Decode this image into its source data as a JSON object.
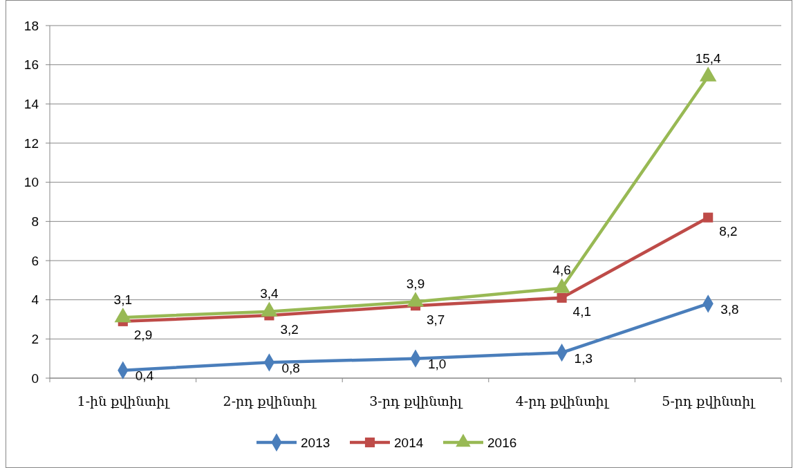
{
  "chart_data": {
    "type": "line",
    "categories": [
      "1-ին քվինտիլ",
      "2-րդ քվինտիլ",
      "3-րդ քվինտիլ",
      "4-րդ քվինտիլ",
      "5-րդ քվինտիլ"
    ],
    "series": [
      {
        "name": "2013",
        "color": "#4a7ebb",
        "marker": "diamond",
        "values": [
          0.4,
          0.8,
          1.0,
          1.3,
          3.8
        ],
        "value_labels": [
          "0,4",
          "0,8",
          "1,0",
          "1,3",
          "3,8"
        ]
      },
      {
        "name": "2014",
        "color": "#be4b48",
        "marker": "square",
        "values": [
          2.9,
          3.2,
          3.7,
          4.1,
          8.2
        ],
        "value_labels": [
          "2,9",
          "3,2",
          "3,7",
          "4,1",
          "8,2"
        ]
      },
      {
        "name": "2016",
        "color": "#98b954",
        "marker": "triangle",
        "values": [
          3.1,
          3.4,
          3.9,
          4.6,
          15.4
        ],
        "value_labels": [
          "3,1",
          "3,4",
          "3,9",
          "4,6",
          "15,4"
        ]
      }
    ],
    "ylim": [
      0,
      18
    ],
    "yticks": [
      0,
      2,
      4,
      6,
      8,
      10,
      12,
      14,
      16,
      18
    ],
    "grid": "y",
    "legend": "bottom",
    "line_style": "solid"
  }
}
